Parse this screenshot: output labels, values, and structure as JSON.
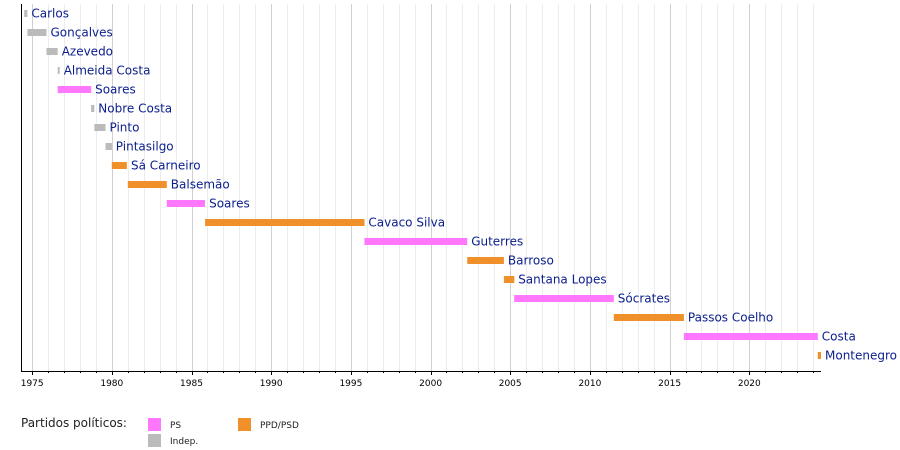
{
  "chart_data": {
    "type": "bar",
    "subtype": "timeline",
    "title": "",
    "xlabel": "",
    "ylabel": "",
    "xlim": [
      1974.3,
      2024.5
    ],
    "x_ticks": [
      1975,
      1980,
      1985,
      1990,
      1995,
      2000,
      2005,
      2010,
      2015,
      2020
    ],
    "grid": true,
    "colors": {
      "PS": "#ff77ff",
      "PPD/PSD": "#f0902a",
      "Indep.": "#bbbbbb"
    },
    "terms": [
      {
        "name": "Carlos",
        "party": "Indep.",
        "start": 1974.5,
        "end": 1974.7
      },
      {
        "name": "Gonçalves",
        "party": "Indep.",
        "start": 1974.7,
        "end": 1975.9
      },
      {
        "name": "Azevedo",
        "party": "Indep.",
        "start": 1975.9,
        "end": 1976.6
      },
      {
        "name": "Almeida Costa",
        "party": "Indep.",
        "start": 1976.6,
        "end": 1976.65
      },
      {
        "name": "Soares",
        "party": "PS",
        "start": 1976.6,
        "end": 1978.7
      },
      {
        "name": "Nobre Costa",
        "party": "Indep.",
        "start": 1978.7,
        "end": 1978.9
      },
      {
        "name": "Pinto",
        "party": "Indep.",
        "start": 1978.9,
        "end": 1979.6
      },
      {
        "name": "Pintasilgo",
        "party": "Indep.",
        "start": 1979.6,
        "end": 1980.0
      },
      {
        "name": "Sá Carneiro",
        "party": "PPD/PSD",
        "start": 1980.0,
        "end": 1980.95
      },
      {
        "name": "Balsemão",
        "party": "PPD/PSD",
        "start": 1981.0,
        "end": 1983.45
      },
      {
        "name": "Soares",
        "party": "PS",
        "start": 1983.45,
        "end": 1985.85
      },
      {
        "name": "Cavaco Silva",
        "party": "PPD/PSD",
        "start": 1985.85,
        "end": 1995.85
      },
      {
        "name": "Guterres",
        "party": "PS",
        "start": 1995.85,
        "end": 2002.3
      },
      {
        "name": "Barroso",
        "party": "PPD/PSD",
        "start": 2002.3,
        "end": 2004.6
      },
      {
        "name": "Santana Lopes",
        "party": "PPD/PSD",
        "start": 2004.6,
        "end": 2005.25
      },
      {
        "name": "Sócrates",
        "party": "PS",
        "start": 2005.25,
        "end": 2011.5
      },
      {
        "name": "Passos Coelho",
        "party": "PPD/PSD",
        "start": 2011.5,
        "end": 2015.9
      },
      {
        "name": "Costa",
        "party": "PS",
        "start": 2015.9,
        "end": 2024.3
      },
      {
        "name": "Montenegro",
        "party": "PPD/PSD",
        "start": 2024.3,
        "end": 2024.5
      }
    ],
    "legend": {
      "title": "Partidos políticos:",
      "items": [
        {
          "label": "PS",
          "party": "PS"
        },
        {
          "label": "PPD/PSD",
          "party": "PPD/PSD"
        },
        {
          "label": "Indep.",
          "party": "Indep."
        }
      ]
    }
  }
}
